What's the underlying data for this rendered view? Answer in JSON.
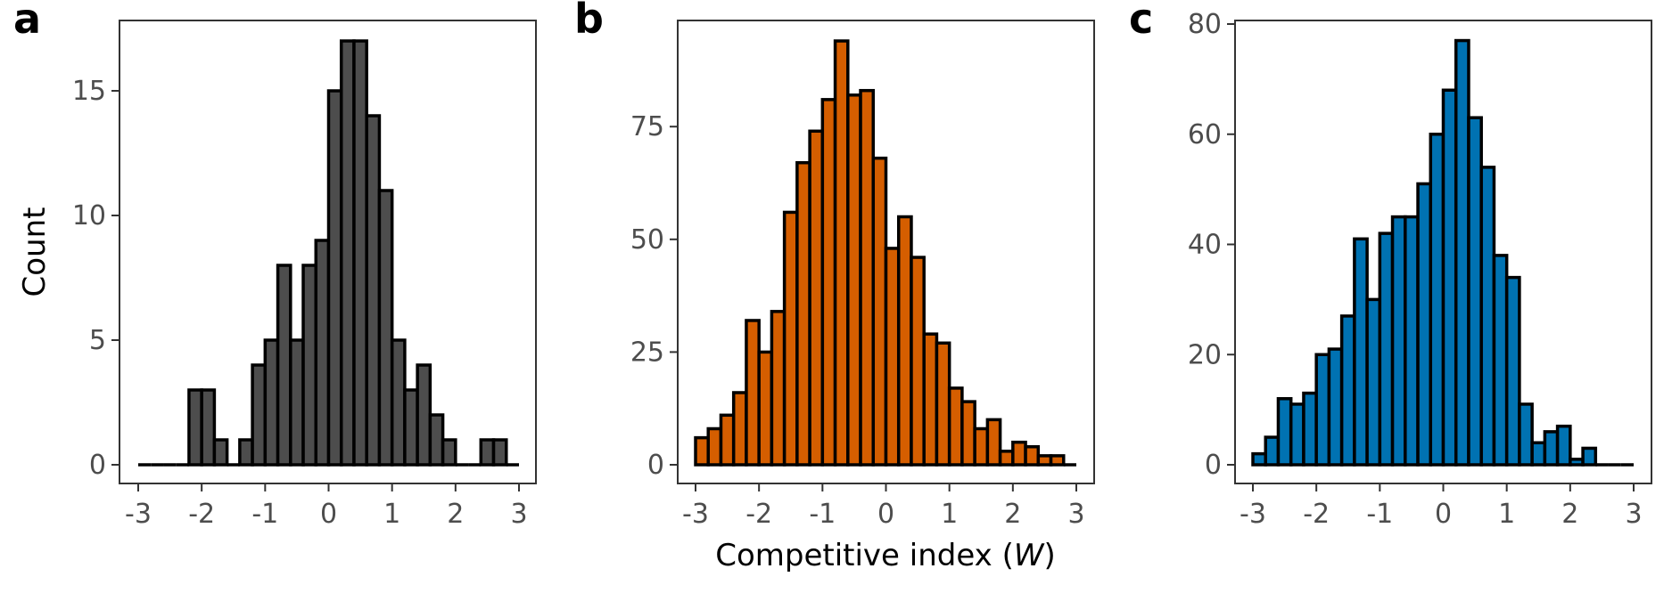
{
  "chart_data": [
    {
      "type": "bar",
      "panel_label": "a",
      "fill": "#4d4d4d",
      "xlim": [
        -3,
        3
      ],
      "ylim": [
        0,
        17
      ],
      "xticks": [
        -3,
        -2,
        -1,
        0,
        1,
        2,
        3
      ],
      "xtick_labels": [
        "-3",
        "-2",
        "-1",
        "0",
        "1",
        "2",
        "3"
      ],
      "yticks": [
        0,
        5,
        10,
        15
      ],
      "ytick_labels": [
        "0",
        "5",
        "10",
        "15"
      ],
      "ylabel": "Count",
      "xlabel": "",
      "grid": false,
      "values": [
        0,
        0,
        0,
        0,
        3,
        3,
        1,
        0,
        1,
        4,
        5,
        8,
        5,
        8,
        9,
        15,
        17,
        17,
        14,
        11,
        5,
        3,
        4,
        2,
        1,
        0,
        0,
        1,
        1,
        0
      ]
    },
    {
      "type": "bar",
      "panel_label": "b",
      "fill": "#d55e00",
      "xlim": [
        -3,
        3
      ],
      "ylim": [
        0,
        94
      ],
      "xticks": [
        -3,
        -2,
        -1,
        0,
        1,
        2,
        3
      ],
      "xtick_labels": [
        "-3",
        "-2",
        "-1",
        "0",
        "1",
        "2",
        "3"
      ],
      "yticks": [
        0,
        25,
        50,
        75
      ],
      "ytick_labels": [
        "0",
        "25",
        "50",
        "75"
      ],
      "ylabel": "",
      "xlabel": "Competitive index (",
      "xlabel_var": "W",
      "xlabel_end": ")",
      "grid": false,
      "values": [
        6,
        8,
        11,
        16,
        32,
        25,
        34,
        56,
        67,
        74,
        81,
        94,
        82,
        83,
        68,
        48,
        55,
        46,
        29,
        27,
        17,
        14,
        8,
        10,
        3,
        5,
        4,
        2,
        2,
        0
      ]
    },
    {
      "type": "bar",
      "panel_label": "c",
      "fill": "#0072b2",
      "xlim": [
        -3,
        3
      ],
      "ylim": [
        0,
        80
      ],
      "xticks": [
        -3,
        -2,
        -1,
        0,
        1,
        2,
        3
      ],
      "xtick_labels": [
        "-3",
        "-2",
        "-1",
        "0",
        "1",
        "2",
        "3"
      ],
      "yticks": [
        0,
        20,
        40,
        60,
        80
      ],
      "ytick_labels": [
        "0",
        "20",
        "40",
        "60",
        "80"
      ],
      "ylabel": "",
      "xlabel": "",
      "grid": false,
      "values": [
        2,
        5,
        12,
        11,
        13,
        20,
        21,
        27,
        41,
        30,
        42,
        45,
        45,
        51,
        60,
        68,
        77,
        63,
        54,
        38,
        34,
        11,
        4,
        6,
        7,
        1,
        3,
        0,
        0,
        0
      ]
    }
  ]
}
